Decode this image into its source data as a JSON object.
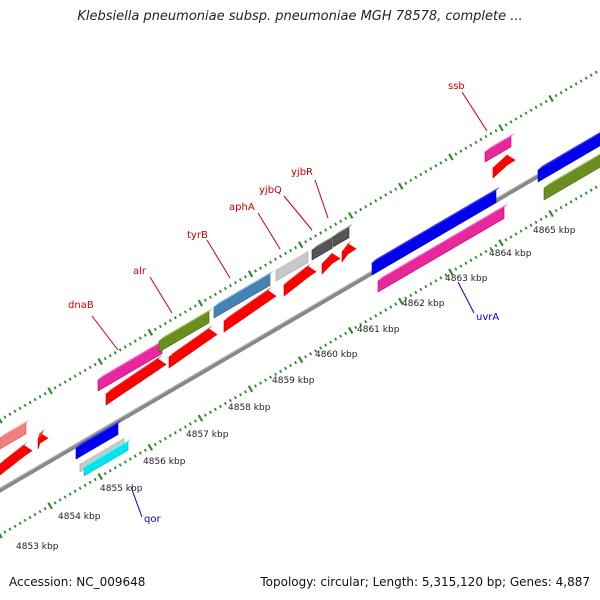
{
  "header": {
    "title": "Klebsiella pneumoniae subsp. pneumoniae MGH 78578, complete ..."
  },
  "footer": {
    "accession": "Accession: NC_009648",
    "summary": "Topology: circular; Length: 5,315,120 bp; Genes: 4,887"
  },
  "scale_labels": [
    "4853 kbp",
    "4854 kbp",
    "4855 kbp",
    "4856 kbp",
    "4857 kbp",
    "4858 kbp",
    "4859 kbp",
    "4860 kbp",
    "4861 kbp",
    "4862 kbp",
    "4863 kbp",
    "4864 kbp",
    "4865 kbp"
  ],
  "gene_labels_upper": [
    {
      "name": "dnaB",
      "color": "#cc0000"
    },
    {
      "name": "alr",
      "color": "#cc0000"
    },
    {
      "name": "tyrB",
      "color": "#cc0000"
    },
    {
      "name": "aphA",
      "color": "#cc0000"
    },
    {
      "name": "yjbQ",
      "color": "#cc0000"
    },
    {
      "name": "yjbR",
      "color": "#cc0000"
    },
    {
      "name": "ssb",
      "color": "#cc0000"
    }
  ],
  "gene_labels_lower": [
    {
      "name": "qor",
      "color": "#0000cc"
    },
    {
      "name": "uvrA",
      "color": "#0000cc"
    }
  ],
  "colors": {
    "backbone": "#888888",
    "tick": "#2e8b2e",
    "pink": "#e8289a",
    "olive": "#6b8e23",
    "steelblue": "#4682b4",
    "lightgray": "#c8c8c8",
    "darkgray": "#555555",
    "blue": "#0000ee",
    "cyan": "#00e5ee",
    "salmon": "#f08080",
    "red": "#ff0000"
  }
}
